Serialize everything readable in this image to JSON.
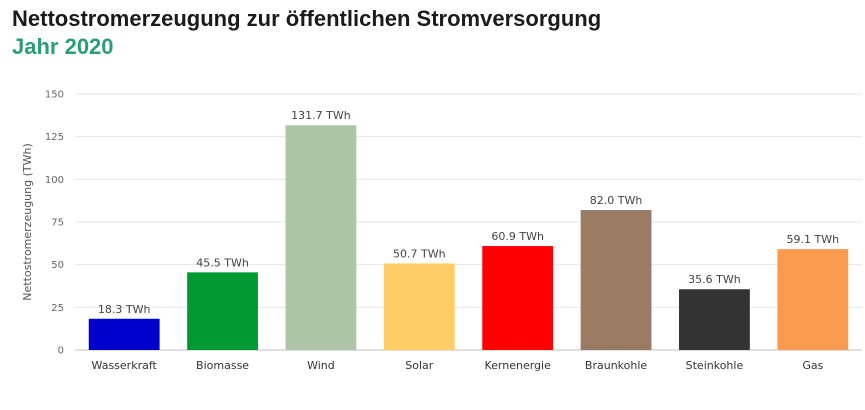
{
  "chart_data": {
    "type": "bar",
    "title": "Nettostromerzeugung zur öffentlichen Stromversorgung",
    "subtitle": "Jahr 2020",
    "ylabel": "Nettostromerzeugung (TWh)",
    "xlabel": "",
    "ylim": [
      0,
      150
    ],
    "yticks": [
      0,
      25,
      50,
      75,
      100,
      125,
      150
    ],
    "grid": true,
    "categories": [
      "Wasserkraft",
      "Biomasse",
      "Wind",
      "Solar",
      "Kernenergie",
      "Braunkohle",
      "Steinkohle",
      "Gas"
    ],
    "values": [
      18.3,
      45.5,
      131.7,
      50.7,
      60.9,
      82.0,
      35.6,
      59.1
    ],
    "data_labels": [
      "18.3 TWh",
      "45.5 TWh",
      "131.7 TWh",
      "50.7 TWh",
      "60.9 TWh",
      "82.0 TWh",
      "35.6 TWh",
      "59.1 TWh"
    ],
    "colors": [
      "#0000cc",
      "#009933",
      "#aec6a7",
      "#ffcc66",
      "#ff0000",
      "#987b62",
      "#333333",
      "#f99a4e"
    ]
  },
  "colors": {
    "title": "#1b1b1b",
    "subtitle": "#2a9d7a",
    "grid": "#e6e6e6",
    "axis": "#c0c0c0"
  }
}
